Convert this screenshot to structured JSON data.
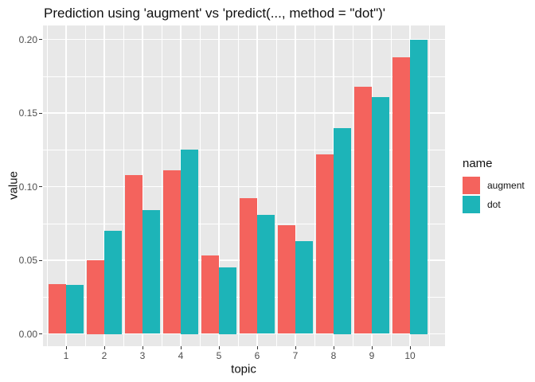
{
  "title": "Prediction using 'augment' vs 'predict(..., method = \"dot\")'",
  "chart_data": {
    "type": "bar",
    "title": "Prediction using 'augment' vs 'predict(..., method = \"dot\")'",
    "xlabel": "topic",
    "ylabel": "value",
    "categories": [
      "1",
      "2",
      "3",
      "4",
      "5",
      "6",
      "7",
      "8",
      "9",
      "10"
    ],
    "series": [
      {
        "name": "augment",
        "color": "#F4635D",
        "values": [
          0.034,
          0.05,
          0.108,
          0.111,
          0.053,
          0.092,
          0.074,
          0.122,
          0.168,
          0.188
        ]
      },
      {
        "name": "dot",
        "color": "#1DB4B8",
        "values": [
          0.033,
          0.07,
          0.084,
          0.125,
          0.045,
          0.081,
          0.063,
          0.14,
          0.161,
          0.2
        ]
      }
    ],
    "ylim": [
      0.0,
      0.205
    ],
    "yticks": [
      0.0,
      0.05,
      0.1,
      0.15,
      0.2
    ],
    "ytick_labels": [
      "0.00",
      "0.05",
      "0.10",
      "0.15",
      "0.20"
    ],
    "legend_title": "name",
    "legend_position": "right",
    "grid": true,
    "panel_bg": "#E8E8E8",
    "grid_color": "#FFFFFF",
    "tick_label_color": "#4D4D4D"
  }
}
